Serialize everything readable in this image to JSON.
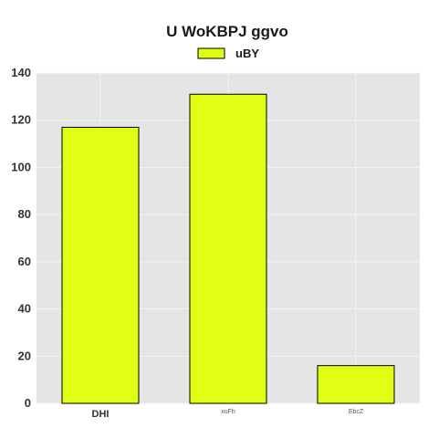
{
  "chart_data": {
    "type": "bar",
    "title": "U  WoKBPJ ggvo",
    "xlabel": "",
    "ylabel": "",
    "categories": [
      "DHI",
      "xuFh",
      "EbcZ"
    ],
    "series": [
      {
        "name": "uBY",
        "values": [
          117,
          131,
          16
        ]
      }
    ],
    "ylim": [
      0,
      140
    ],
    "yticks": [
      0,
      20,
      40,
      60,
      80,
      100,
      120,
      140
    ],
    "grid": true,
    "legend": "top-center",
    "colors": {
      "bar": "#e1ff14",
      "bar_edge": "#000000",
      "plot_background": "#e5e5e5",
      "grid": "#f4f4f4"
    }
  }
}
